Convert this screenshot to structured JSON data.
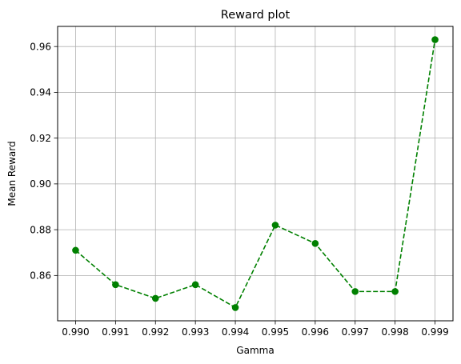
{
  "chart_data": {
    "type": "line",
    "title": "Reward plot",
    "xlabel": "Gamma",
    "ylabel": "Mean Reward",
    "x": [
      0.99,
      0.991,
      0.992,
      0.993,
      0.994,
      0.995,
      0.996,
      0.997,
      0.998,
      0.999
    ],
    "x_tick_labels": [
      "0.990",
      "0.991",
      "0.992",
      "0.993",
      "0.994",
      "0.995",
      "0.996",
      "0.997",
      "0.998",
      "0.999"
    ],
    "series": [
      {
        "values": [
          0.871,
          0.856,
          0.85,
          0.856,
          0.846,
          0.882,
          0.874,
          0.853,
          0.853,
          0.963
        ],
        "color": "#008000",
        "line_style": "dashed",
        "marker": "circle"
      }
    ],
    "y_ticks": [
      0.86,
      0.88,
      0.9,
      0.92,
      0.94,
      0.96
    ],
    "y_tick_labels": [
      "0.86",
      "0.88",
      "0.90",
      "0.92",
      "0.94",
      "0.96"
    ],
    "xlim": [
      0.98955,
      0.99945
    ],
    "ylim": [
      0.8402,
      0.9688
    ],
    "grid": true,
    "grid_color": "#b0b0b0"
  }
}
